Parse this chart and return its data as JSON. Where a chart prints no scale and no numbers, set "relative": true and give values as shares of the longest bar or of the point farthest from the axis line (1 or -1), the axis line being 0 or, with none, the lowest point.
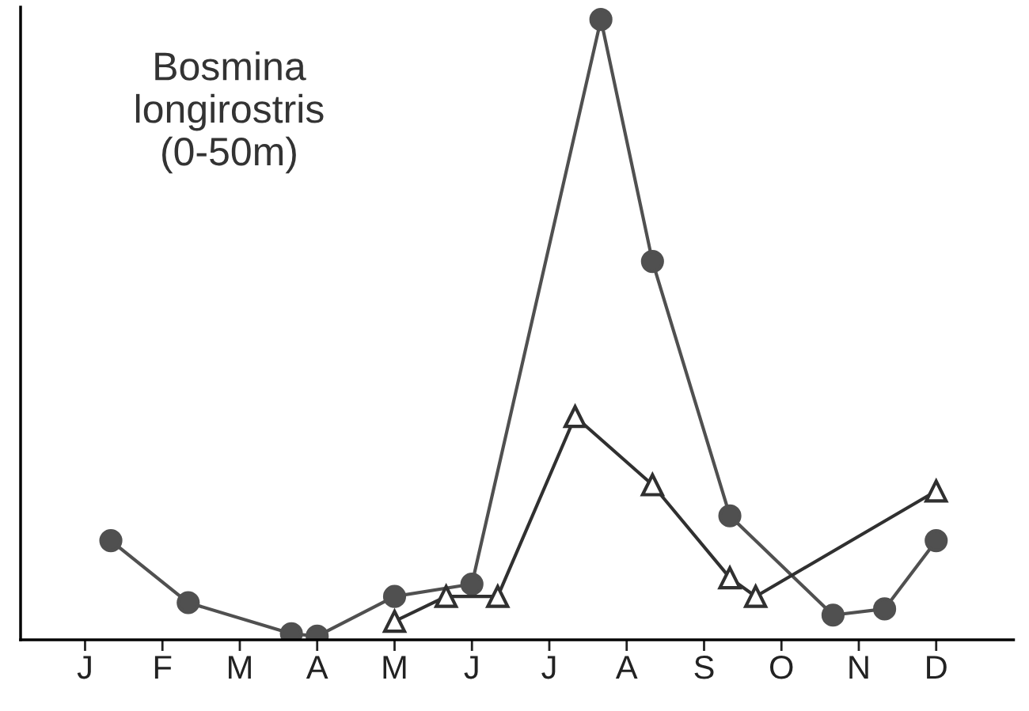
{
  "chart_data": {
    "type": "line",
    "relative": true,
    "annotations": [
      "Bosmina\nlongirostris\n(0-50m)"
    ],
    "categories": [
      null,
      "J",
      null,
      null,
      "F",
      null,
      null,
      "M",
      null,
      null,
      "A",
      null,
      null,
      "M",
      null,
      null,
      "J",
      null,
      null,
      "J",
      null,
      null,
      "A",
      null,
      null,
      "S",
      null,
      null,
      "O",
      null,
      null,
      "N",
      null,
      null,
      "D",
      null
    ],
    "tick_labels": "x",
    "grid": false,
    "legend": false,
    "line_style": "solid",
    "series": [
      {
        "color": "#505050",
        "marker": "circle",
        "values": [
          null,
          null,
          0.16,
          null,
          null,
          0.06,
          null,
          null,
          null,
          0.01,
          0.006,
          null,
          null,
          0.07,
          null,
          null,
          0.09,
          null,
          null,
          null,
          null,
          1.0,
          null,
          0.61,
          null,
          null,
          0.2,
          null,
          null,
          null,
          0.04,
          null,
          0.05,
          null,
          0.16,
          null
        ]
      },
      {
        "color": "#303030",
        "marker": "triangle",
        "values": [
          null,
          null,
          null,
          null,
          null,
          null,
          null,
          null,
          null,
          null,
          null,
          null,
          null,
          0.03,
          null,
          0.07,
          null,
          0.07,
          null,
          null,
          0.36,
          null,
          null,
          0.25,
          null,
          null,
          0.1,
          0.07,
          null,
          null,
          null,
          null,
          null,
          null,
          0.24,
          null
        ]
      }
    ]
  }
}
